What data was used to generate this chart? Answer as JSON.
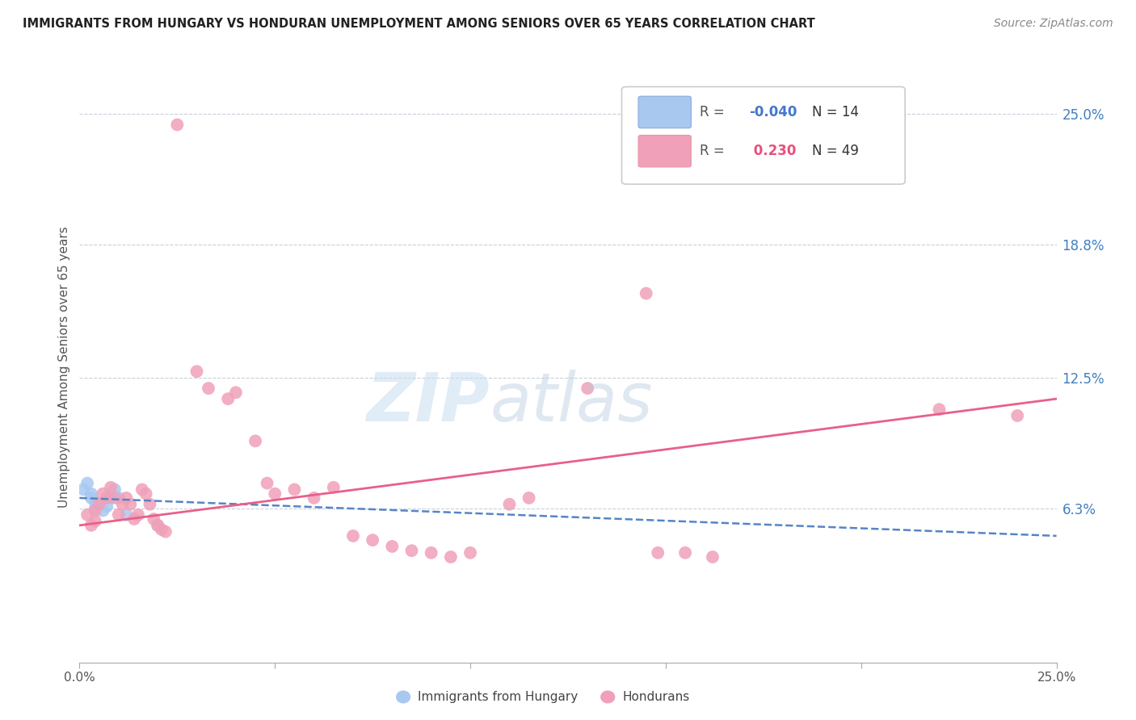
{
  "title": "IMMIGRANTS FROM HUNGARY VS HONDURAN UNEMPLOYMENT AMONG SENIORS OVER 65 YEARS CORRELATION CHART",
  "source": "Source: ZipAtlas.com",
  "ylabel": "Unemployment Among Seniors over 65 years",
  "ytick_labels": [
    "25.0%",
    "18.8%",
    "12.5%",
    "6.3%"
  ],
  "ytick_values": [
    0.25,
    0.188,
    0.125,
    0.063
  ],
  "xlim": [
    0.0,
    0.25
  ],
  "ylim": [
    -0.01,
    0.27
  ],
  "blue_color": "#a8c8f0",
  "pink_color": "#f0a0b8",
  "trendline_blue_color": "#5585c5",
  "trendline_pink_color": "#e8608a",
  "blue_scatter": [
    [
      0.001,
      0.072
    ],
    [
      0.002,
      0.075
    ],
    [
      0.003,
      0.07
    ],
    [
      0.003,
      0.068
    ],
    [
      0.004,
      0.066
    ],
    [
      0.004,
      0.063
    ],
    [
      0.005,
      0.065
    ],
    [
      0.006,
      0.062
    ],
    [
      0.007,
      0.064
    ],
    [
      0.008,
      0.068
    ],
    [
      0.009,
      0.072
    ],
    [
      0.01,
      0.068
    ],
    [
      0.012,
      0.06
    ],
    [
      0.02,
      0.055
    ]
  ],
  "pink_scatter": [
    [
      0.002,
      0.06
    ],
    [
      0.003,
      0.055
    ],
    [
      0.004,
      0.062
    ],
    [
      0.004,
      0.057
    ],
    [
      0.005,
      0.065
    ],
    [
      0.006,
      0.07
    ],
    [
      0.007,
      0.068
    ],
    [
      0.008,
      0.073
    ],
    [
      0.009,
      0.068
    ],
    [
      0.01,
      0.06
    ],
    [
      0.011,
      0.065
    ],
    [
      0.012,
      0.068
    ],
    [
      0.013,
      0.065
    ],
    [
      0.014,
      0.058
    ],
    [
      0.015,
      0.06
    ],
    [
      0.016,
      0.072
    ],
    [
      0.017,
      0.07
    ],
    [
      0.018,
      0.065
    ],
    [
      0.019,
      0.058
    ],
    [
      0.02,
      0.055
    ],
    [
      0.021,
      0.053
    ],
    [
      0.022,
      0.052
    ],
    [
      0.025,
      0.245
    ],
    [
      0.03,
      0.128
    ],
    [
      0.033,
      0.12
    ],
    [
      0.038,
      0.115
    ],
    [
      0.04,
      0.118
    ],
    [
      0.045,
      0.095
    ],
    [
      0.048,
      0.075
    ],
    [
      0.05,
      0.07
    ],
    [
      0.055,
      0.072
    ],
    [
      0.06,
      0.068
    ],
    [
      0.065,
      0.073
    ],
    [
      0.07,
      0.05
    ],
    [
      0.075,
      0.048
    ],
    [
      0.08,
      0.045
    ],
    [
      0.085,
      0.043
    ],
    [
      0.09,
      0.042
    ],
    [
      0.095,
      0.04
    ],
    [
      0.1,
      0.042
    ],
    [
      0.11,
      0.065
    ],
    [
      0.115,
      0.068
    ],
    [
      0.13,
      0.12
    ],
    [
      0.145,
      0.165
    ],
    [
      0.148,
      0.042
    ],
    [
      0.155,
      0.042
    ],
    [
      0.162,
      0.04
    ],
    [
      0.22,
      0.11
    ],
    [
      0.24,
      0.107
    ]
  ]
}
